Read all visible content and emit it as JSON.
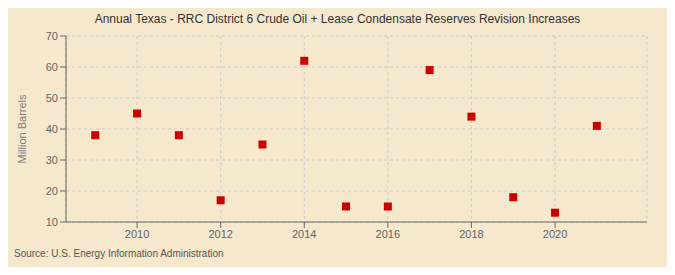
{
  "chart_data": {
    "type": "scatter",
    "title": "Annual Texas - RRC District 6 Crude Oil + Lease Condensate Reserves Revision Increases",
    "y_label": "Million Barrels",
    "annotations": [
      "Source: U.S. Energy Information Administration"
    ],
    "x": [
      2009,
      2010,
      2011,
      2012,
      2013,
      2014,
      2015,
      2016,
      2017,
      2018,
      2019,
      2020,
      2021
    ],
    "values": [
      38.0,
      45.0,
      38.0,
      17.0,
      35.0,
      62.0,
      15.0,
      15.0,
      59.0,
      44.0,
      18.0,
      13.0,
      41.0
    ],
    "color": "#cc0000",
    "marker": "square",
    "xlim": [
      2008.3,
      2022.2
    ],
    "xticks": [
      2010,
      2012,
      2014,
      2016,
      2018,
      2020
    ],
    "ylim": [
      10,
      70
    ],
    "yticks": [
      10,
      20,
      30,
      40,
      50,
      60,
      70
    ],
    "grid": true
  }
}
